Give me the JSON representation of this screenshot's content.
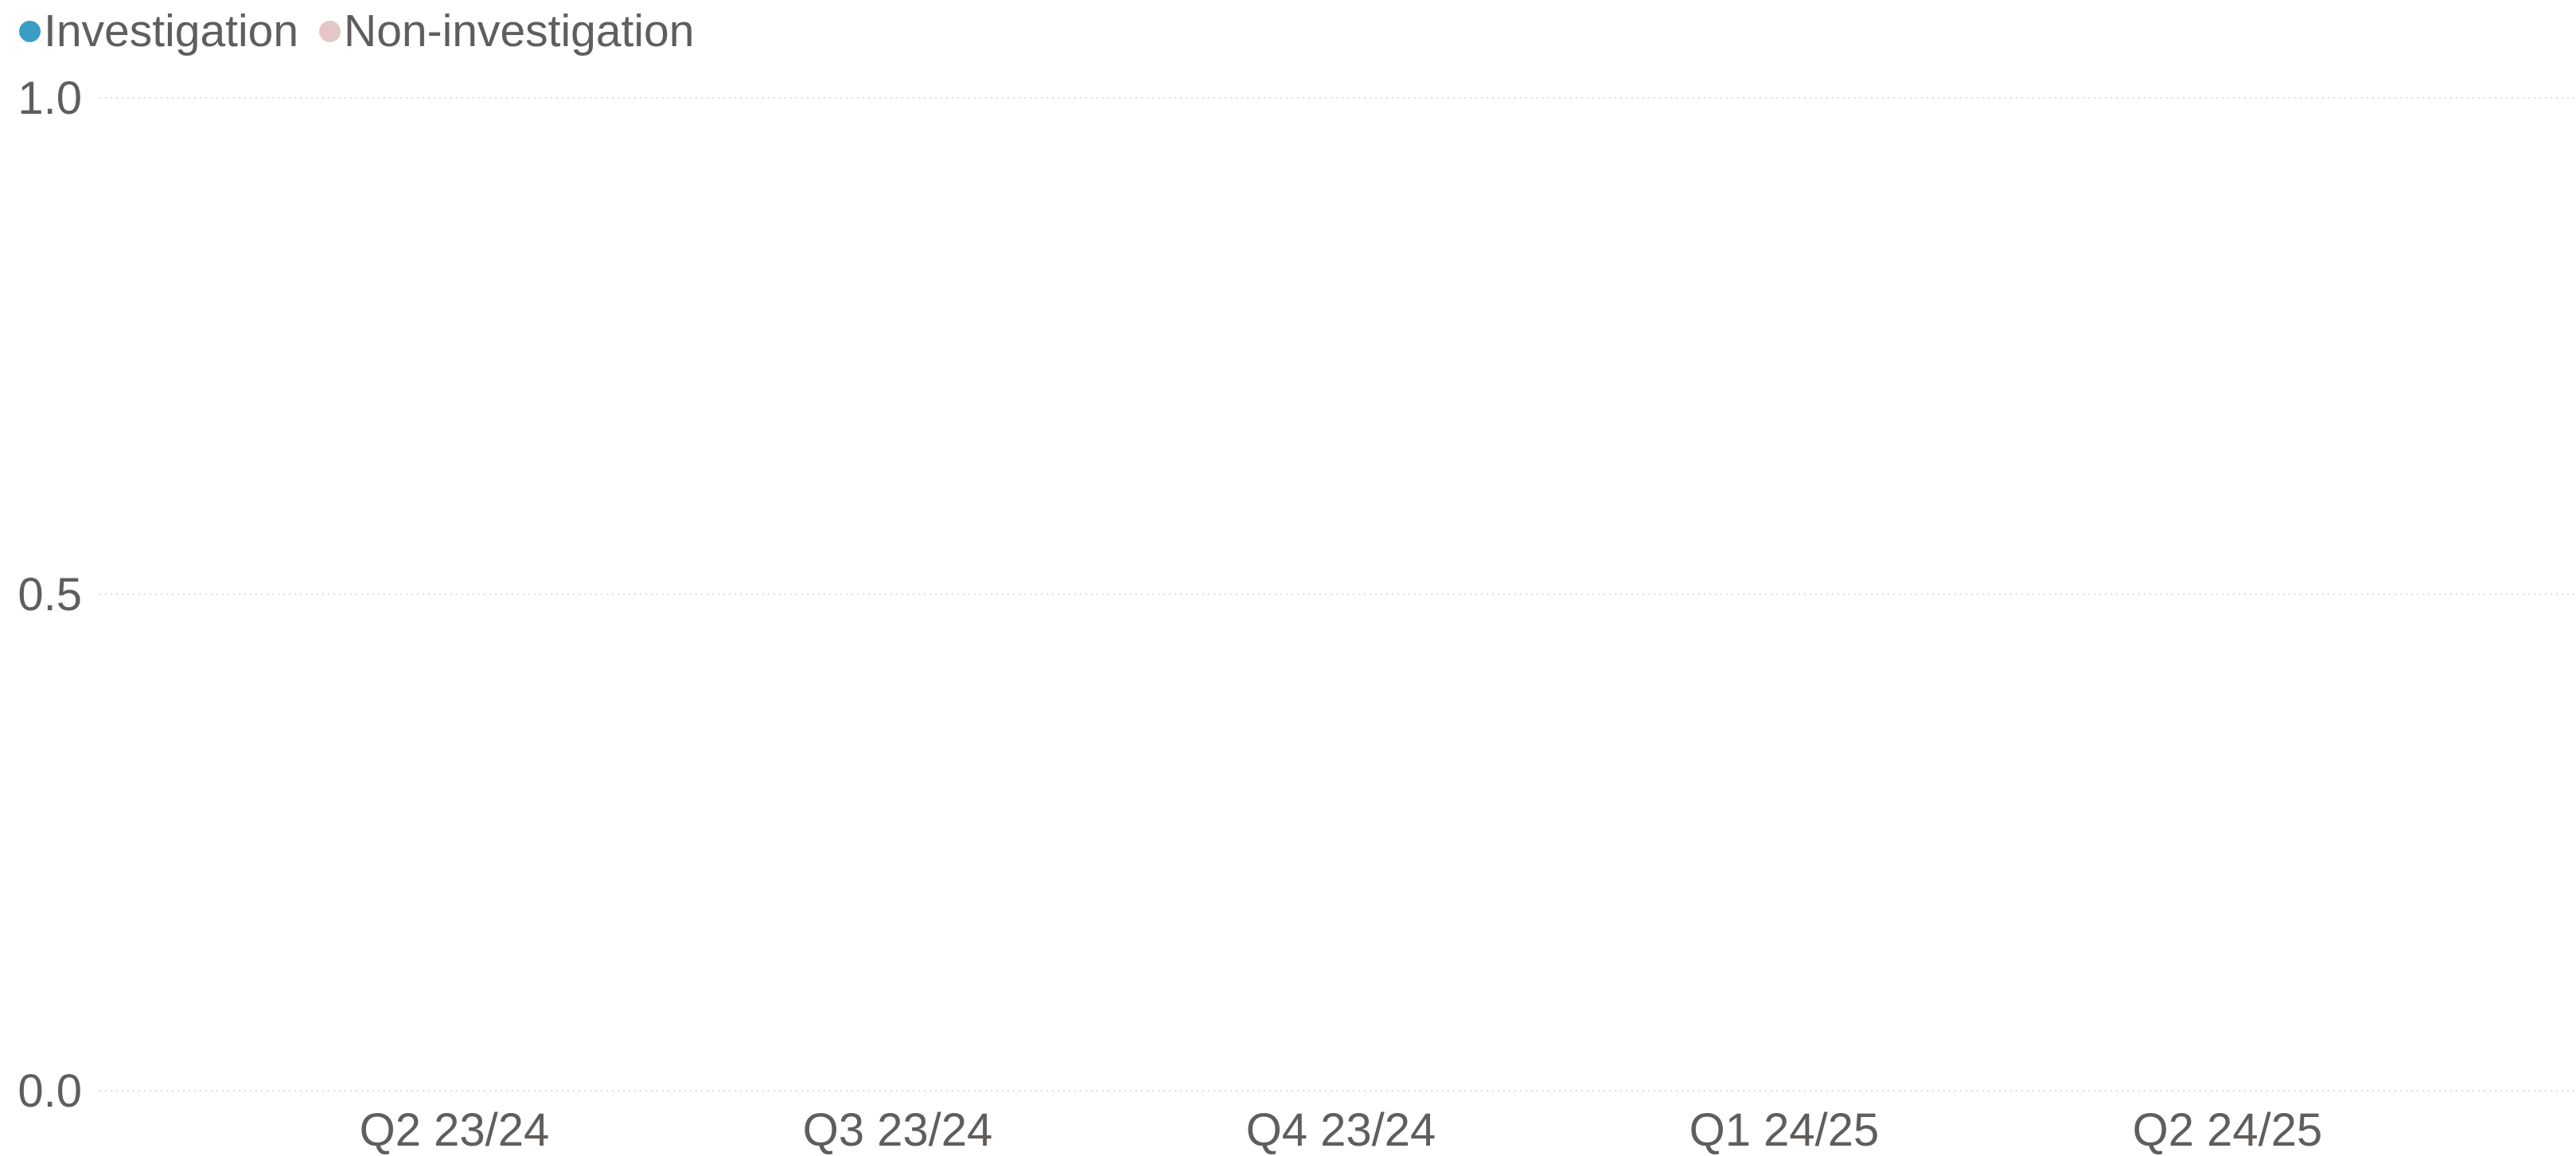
{
  "chart_data": {
    "type": "bar",
    "title": "",
    "xlabel": "",
    "ylabel": "",
    "categories": [
      "Q2 23/24",
      "Q3 23/24",
      "Q4 23/24",
      "Q1 24/25",
      "Q2 24/25"
    ],
    "series": [
      {
        "name": "Investigation",
        "color": "#3a9ec4",
        "values": [
          0,
          0,
          0,
          0,
          0
        ]
      },
      {
        "name": "Non-investigation",
        "color": "#e5c5c6",
        "values": [
          0,
          0,
          0,
          0,
          0
        ]
      }
    ],
    "ylim": [
      0,
      1
    ],
    "yticks": [
      "0.0",
      "0.5",
      "1.0"
    ],
    "ytick_values": [
      0,
      0.5,
      1
    ],
    "grid": true,
    "legend_position": "top-left"
  },
  "colors": {
    "axis_text": "#605e5c",
    "gridline": "#e1dfdd"
  }
}
